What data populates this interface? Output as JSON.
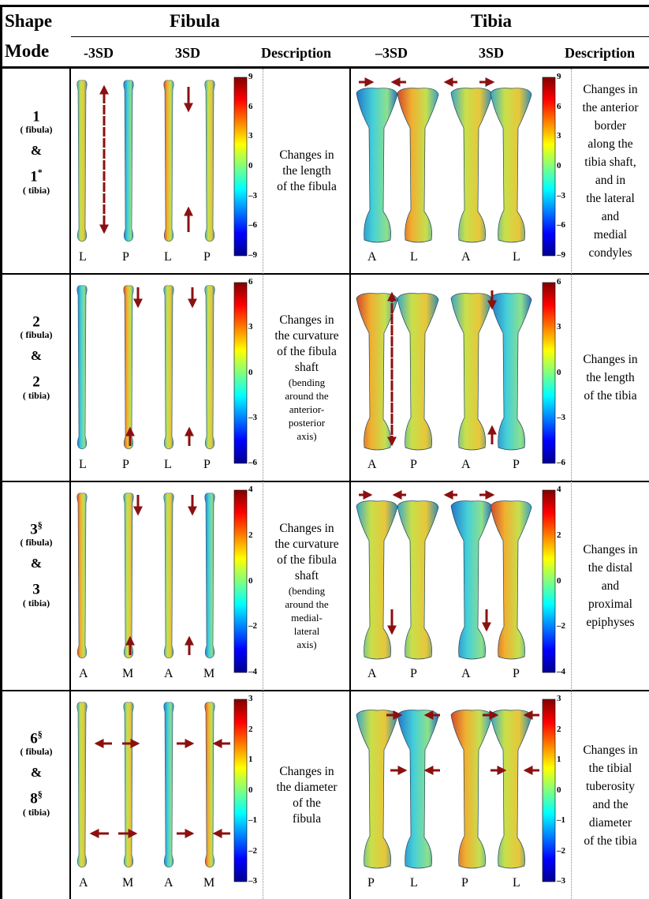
{
  "header": {
    "shape_mode_line1": "Shape",
    "shape_mode_line2": "Mode",
    "fibula": "Fibula",
    "tibia": "Tibia",
    "fib_minus": "-3SD",
    "fib_plus": "3SD",
    "fib_desc": "Description",
    "tib_minus": "–3SD",
    "tib_plus": "3SD",
    "tib_desc": "Description"
  },
  "rows": [
    {
      "fib_mode": "1",
      "fib_sup": "",
      "fib_sub": "( fibula)",
      "amp": "&",
      "tib_mode": "1",
      "tib_sup": "*",
      "tib_sub": "( tibia)",
      "fib_desc": [
        "Changes in",
        "the length",
        "of the fibula"
      ],
      "fib_desc_small": [],
      "tib_desc": [
        "Changes in",
        "the anterior",
        "border",
        "along the",
        "tibia shaft,",
        "and in",
        "the lateral",
        "and",
        "medial",
        "condyles"
      ],
      "fib_views": [
        "L",
        "P",
        "L",
        "P"
      ],
      "tib_views": [
        "A",
        "L",
        "A",
        "L"
      ],
      "fib_ticks": [
        "9",
        "6",
        "3",
        "0",
        "–3",
        "–6",
        "–9"
      ],
      "tib_ticks": [
        "9",
        "6",
        "3",
        "0",
        "–3",
        "–6",
        "–9"
      ]
    },
    {
      "fib_mode": "2",
      "fib_sup": "",
      "fib_sub": "( fibula)",
      "amp": "&",
      "tib_mode": "2",
      "tib_sup": "",
      "tib_sub": "( tibia)",
      "fib_desc": [
        "Changes in",
        "the curvature",
        "of the fibula",
        "shaft"
      ],
      "fib_desc_small": [
        "(bending",
        "around the",
        "anterior-",
        "posterior",
        "axis)"
      ],
      "tib_desc": [
        "Changes in",
        "the length",
        "of the tibia"
      ],
      "fib_views": [
        "L",
        "P",
        "L",
        "P"
      ],
      "tib_views": [
        "A",
        "P",
        "A",
        "P"
      ],
      "fib_ticks": [
        "6",
        "3",
        "0",
        "–3",
        "–6"
      ],
      "tib_ticks": [
        "6",
        "3",
        "0",
        "–3",
        "–6"
      ]
    },
    {
      "fib_mode": "3",
      "fib_sup": "§",
      "fib_sub": "( fibula)",
      "amp": "&",
      "tib_mode": "3",
      "tib_sup": "",
      "tib_sub": "( tibia)",
      "fib_desc": [
        "Changes in",
        "the curvature",
        "of the fibula",
        "shaft"
      ],
      "fib_desc_small": [
        "(bending",
        "around the",
        "medial-",
        "lateral",
        "axis)"
      ],
      "tib_desc": [
        "Changes in",
        "the distal",
        "and",
        "proximal",
        "epiphyses"
      ],
      "fib_views": [
        "A",
        "M",
        "A",
        "M"
      ],
      "tib_views": [
        "A",
        "P",
        "A",
        "P"
      ],
      "fib_ticks": [
        "4",
        "2",
        "0",
        "–2",
        "–4"
      ],
      "tib_ticks": [
        "4",
        "2",
        "0",
        "–2",
        "–4"
      ]
    },
    {
      "fib_mode": "6",
      "fib_sup": "§",
      "fib_sub": "( fibula)",
      "amp": "&",
      "tib_mode": "8",
      "tib_sup": "§",
      "tib_sub": "( tibia)",
      "fib_desc": [
        "Changes in",
        "the diameter",
        "of the",
        "fibula"
      ],
      "fib_desc_small": [],
      "tib_desc": [
        "Changes in",
        "the tibial",
        "tuberosity",
        "and the",
        "diameter",
        "of the tibia"
      ],
      "fib_views": [
        "A",
        "M",
        "A",
        "M"
      ],
      "tib_views": [
        "P",
        "L",
        "P",
        "L"
      ],
      "fib_ticks": [
        "3",
        "2",
        "1",
        "0",
        "–1",
        "–2",
        "–3"
      ],
      "tib_ticks": [
        "3",
        "2",
        "1",
        "0",
        "–1",
        "–2",
        "–3"
      ]
    }
  ]
}
